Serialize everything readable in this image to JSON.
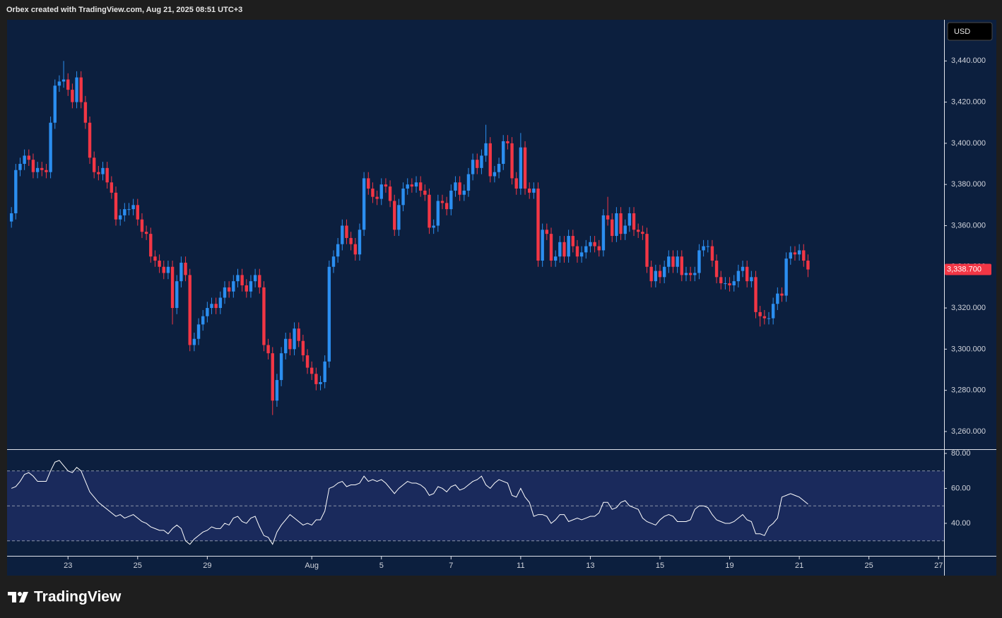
{
  "header": {
    "text": "Orbex created with TradingView.com, Aug 21, 2025 08:51 UTC+3"
  },
  "footer": {
    "logo": "TradingView"
  },
  "chart_data": [
    {
      "type": "candlestick",
      "currency": "USD",
      "up_color": "#2b8ef0",
      "down_color": "#f23645",
      "xlim": [
        -1,
        214.26
      ],
      "xticks": [
        {
          "value": 13,
          "label": "23"
        },
        {
          "value": 29,
          "label": "25"
        },
        {
          "value": 45,
          "label": "29"
        },
        {
          "value": 69,
          "label": "Aug"
        },
        {
          "value": 85,
          "label": "5"
        },
        {
          "value": 101,
          "label": "7"
        },
        {
          "value": 117,
          "label": "11"
        },
        {
          "value": 133,
          "label": "13"
        },
        {
          "value": 149,
          "label": "15"
        },
        {
          "value": 165,
          "label": "19"
        },
        {
          "value": 181,
          "label": "21"
        },
        {
          "value": 197,
          "label": "25"
        },
        {
          "value": 213,
          "label": "27"
        }
      ],
      "ylim": [
        3251.4,
        3460
      ],
      "yticks": [
        {
          "value": 3260,
          "label": "3,260.000"
        },
        {
          "value": 3280,
          "label": "3,280.000"
        },
        {
          "value": 3300,
          "label": "3,300.000"
        },
        {
          "value": 3320,
          "label": "3,320.000"
        },
        {
          "value": 3340,
          "label": "3,340.000"
        },
        {
          "value": 3360,
          "label": "3,360.000"
        },
        {
          "value": 3380,
          "label": "3,380.000"
        },
        {
          "value": 3400,
          "label": "3,400.000"
        },
        {
          "value": 3420,
          "label": "3,420.000"
        },
        {
          "value": 3440,
          "label": "3,440.000"
        }
      ],
      "last_price_label": {
        "value": 3338.7,
        "label": "3,338.700"
      },
      "open": [
        3362,
        3366,
        3387,
        3390,
        3394,
        3392,
        3386,
        3388,
        3387,
        3386,
        3410,
        3428,
        3430,
        3431,
        3426,
        3420,
        3432,
        3420,
        3410,
        3393,
        3386,
        3385,
        3388,
        3381,
        3376,
        3363,
        3365,
        3368,
        3368,
        3370,
        3363,
        3357,
        3356,
        3345,
        3343,
        3340,
        3337,
        3340,
        3320,
        3333,
        3342,
        3336,
        3302,
        3305,
        3312,
        3316,
        3320,
        3322,
        3320,
        3325,
        3330,
        3328,
        3333,
        3336,
        3331,
        3328,
        3333,
        3336,
        3330,
        3302,
        3298,
        3275,
        3285,
        3298,
        3305,
        3300,
        3310,
        3304,
        3297,
        3291,
        3288,
        3283,
        3284,
        3294,
        3340,
        3345,
        3351,
        3360,
        3354,
        3351,
        3346,
        3358,
        3383,
        3378,
        3374,
        3373,
        3380,
        3379,
        3372,
        3358,
        3370,
        3378,
        3380,
        3379,
        3381,
        3377,
        3375,
        3359,
        3360,
        3372,
        3371,
        3368,
        3377,
        3381,
        3375,
        3377,
        3385,
        3392,
        3388,
        3394,
        3400,
        3384,
        3386,
        3390,
        3401,
        3400,
        3383,
        3378,
        3398,
        3378,
        3376,
        3378,
        3343,
        3358,
        3356,
        3343,
        3345,
        3352,
        3345,
        3355,
        3350,
        3345,
        3347,
        3350,
        3352,
        3350,
        3348,
        3365,
        3363,
        3355,
        3366,
        3356,
        3360,
        3366,
        3358,
        3357,
        3356,
        3340,
        3333,
        3338,
        3335,
        3340,
        3345,
        3340,
        3345,
        3336,
        3337,
        3336,
        3337,
        3348,
        3350,
        3350,
        3343,
        3335,
        3332,
        3332,
        3331,
        3333,
        3338,
        3340,
        3333,
        3335,
        3318,
        3316,
        3315,
        3315,
        3322,
        3327,
        3326,
        3344,
        3347,
        3346,
        3348,
        3343
      ],
      "high": [
        3369,
        3390,
        3393,
        3397,
        3397,
        3395,
        3391,
        3391,
        3390,
        3413,
        3431,
        3433,
        3440,
        3434,
        3429,
        3435,
        3435,
        3423,
        3413,
        3396,
        3389,
        3391,
        3391,
        3384,
        3379,
        3368,
        3371,
        3371,
        3373,
        3373,
        3366,
        3360,
        3359,
        3348,
        3346,
        3343,
        3343,
        3343,
        3336,
        3345,
        3345,
        3339,
        3308,
        3315,
        3319,
        3323,
        3325,
        3325,
        3328,
        3333,
        3333,
        3336,
        3339,
        3339,
        3334,
        3336,
        3339,
        3339,
        3333,
        3305,
        3301,
        3288,
        3301,
        3308,
        3308,
        3313,
        3313,
        3307,
        3300,
        3294,
        3291,
        3287,
        3297,
        3343,
        3348,
        3354,
        3363,
        3363,
        3357,
        3354,
        3361,
        3386,
        3386,
        3381,
        3377,
        3383,
        3383,
        3382,
        3375,
        3373,
        3381,
        3383,
        3383,
        3384,
        3384,
        3380,
        3378,
        3363,
        3375,
        3375,
        3374,
        3380,
        3384,
        3384,
        3380,
        3388,
        3395,
        3395,
        3397,
        3409,
        3403,
        3389,
        3393,
        3404,
        3404,
        3403,
        3386,
        3405,
        3401,
        3381,
        3381,
        3381,
        3361,
        3361,
        3359,
        3348,
        3355,
        3355,
        3358,
        3358,
        3353,
        3350,
        3353,
        3355,
        3355,
        3353,
        3368,
        3374,
        3366,
        3369,
        3369,
        3363,
        3369,
        3369,
        3361,
        3360,
        3359,
        3343,
        3341,
        3341,
        3343,
        3348,
        3348,
        3348,
        3348,
        3340,
        3340,
        3340,
        3351,
        3353,
        3353,
        3353,
        3346,
        3338,
        3335,
        3335,
        3336,
        3341,
        3343,
        3343,
        3338,
        3338,
        3321,
        3319,
        3318,
        3325,
        3330,
        3330,
        3347,
        3350,
        3350,
        3351,
        3351,
        3346
      ],
      "low": [
        3359,
        3363,
        3384,
        3387,
        3389,
        3383,
        3383,
        3384,
        3383,
        3383,
        3407,
        3425,
        3427,
        3423,
        3417,
        3417,
        3417,
        3407,
        3390,
        3383,
        3382,
        3382,
        3378,
        3373,
        3360,
        3360,
        3362,
        3365,
        3365,
        3360,
        3354,
        3353,
        3342,
        3340,
        3337,
        3334,
        3334,
        3312,
        3317,
        3330,
        3333,
        3299,
        3299,
        3302,
        3309,
        3313,
        3317,
        3317,
        3317,
        3322,
        3325,
        3325,
        3330,
        3328,
        3325,
        3325,
        3330,
        3327,
        3299,
        3295,
        3268,
        3272,
        3282,
        3295,
        3297,
        3297,
        3301,
        3294,
        3288,
        3285,
        3280,
        3280,
        3281,
        3291,
        3337,
        3342,
        3348,
        3351,
        3348,
        3343,
        3343,
        3355,
        3375,
        3371,
        3370,
        3370,
        3376,
        3369,
        3355,
        3355,
        3367,
        3375,
        3376,
        3376,
        3374,
        3372,
        3356,
        3356,
        3357,
        3368,
        3365,
        3365,
        3374,
        3372,
        3372,
        3374,
        3382,
        3385,
        3385,
        3391,
        3381,
        3381,
        3383,
        3387,
        3397,
        3380,
        3375,
        3375,
        3375,
        3373,
        3373,
        3340,
        3340,
        3353,
        3340,
        3340,
        3342,
        3342,
        3342,
        3347,
        3342,
        3342,
        3344,
        3347,
        3347,
        3345,
        3345,
        3360,
        3352,
        3352,
        3353,
        3353,
        3357,
        3355,
        3354,
        3353,
        3337,
        3330,
        3330,
        3332,
        3332,
        3337,
        3337,
        3337,
        3333,
        3333,
        3333,
        3333,
        3334,
        3345,
        3347,
        3340,
        3332,
        3329,
        3329,
        3328,
        3328,
        3330,
        3335,
        3330,
        3330,
        3315,
        3311,
        3312,
        3312,
        3312,
        3319,
        3323,
        3323,
        3341,
        3343,
        3343,
        3340,
        3335
      ],
      "close": [
        3366,
        3387,
        3390,
        3394,
        3392,
        3386,
        3388,
        3387,
        3386,
        3410,
        3428,
        3430,
        3431,
        3426,
        3420,
        3432,
        3420,
        3410,
        3393,
        3386,
        3385,
        3388,
        3381,
        3376,
        3363,
        3365,
        3368,
        3368,
        3370,
        3363,
        3357,
        3356,
        3345,
        3343,
        3340,
        3337,
        3340,
        3320,
        3333,
        3342,
        3336,
        3302,
        3305,
        3312,
        3316,
        3320,
        3322,
        3320,
        3325,
        3330,
        3328,
        3333,
        3336,
        3331,
        3328,
        3333,
        3336,
        3330,
        3302,
        3298,
        3275,
        3285,
        3298,
        3305,
        3300,
        3310,
        3304,
        3297,
        3291,
        3288,
        3283,
        3284,
        3294,
        3340,
        3345,
        3351,
        3360,
        3354,
        3351,
        3346,
        3358,
        3383,
        3378,
        3374,
        3373,
        3380,
        3379,
        3372,
        3358,
        3370,
        3378,
        3380,
        3379,
        3381,
        3377,
        3375,
        3359,
        3360,
        3372,
        3371,
        3368,
        3377,
        3381,
        3375,
        3377,
        3385,
        3392,
        3388,
        3394,
        3400,
        3384,
        3386,
        3390,
        3401,
        3400,
        3383,
        3378,
        3398,
        3378,
        3376,
        3378,
        3343,
        3358,
        3356,
        3343,
        3345,
        3352,
        3345,
        3355,
        3350,
        3345,
        3347,
        3350,
        3352,
        3350,
        3348,
        3365,
        3363,
        3355,
        3366,
        3356,
        3360,
        3366,
        3358,
        3357,
        3356,
        3340,
        3333,
        3338,
        3335,
        3340,
        3345,
        3340,
        3345,
        3336,
        3337,
        3336,
        3337,
        3348,
        3350,
        3350,
        3343,
        3335,
        3332,
        3332,
        3331,
        3333,
        3338,
        3340,
        3333,
        3335,
        3318,
        3316,
        3315,
        3315,
        3322,
        3327,
        3326,
        3344,
        3347,
        3346,
        3348,
        3343,
        3338.7
      ]
    },
    {
      "type": "line",
      "color": "#ffffff",
      "band_color": "#1a2a5c",
      "xlim": [
        -1,
        214.26
      ],
      "ylim": [
        21.4,
        82
      ],
      "yticks": [
        {
          "value": 80,
          "label": "80.00"
        },
        {
          "value": 60,
          "label": "60.00"
        },
        {
          "value": 40,
          "label": "40.00"
        }
      ],
      "levels": [
        30,
        50,
        70
      ],
      "values": [
        60,
        61,
        64,
        68,
        69,
        67,
        64,
        64,
        64,
        70,
        75,
        76,
        73,
        70,
        69,
        72,
        70,
        64,
        58,
        55,
        52,
        50,
        48,
        46,
        44,
        45,
        43,
        44,
        45,
        43,
        41,
        40,
        38,
        37,
        36,
        36,
        34,
        37,
        39,
        37,
        30,
        28,
        31,
        33,
        35,
        36,
        38,
        37,
        37,
        40,
        39,
        43,
        44,
        41,
        40,
        43,
        44,
        38,
        33,
        32,
        28,
        35,
        39,
        42,
        45,
        43,
        41,
        39,
        40,
        39,
        42,
        42,
        47,
        60,
        61,
        63,
        64,
        61,
        62,
        62,
        63,
        67,
        64,
        65,
        64,
        65,
        63,
        60,
        57,
        60,
        62,
        64,
        63,
        63,
        62,
        60,
        56,
        57,
        61,
        60,
        58,
        61,
        62,
        59,
        60,
        62,
        64,
        65,
        67,
        62,
        60,
        63,
        65,
        64,
        63,
        56,
        55,
        60,
        55,
        52,
        44,
        45,
        45,
        44,
        40,
        42,
        45,
        45,
        41,
        42,
        43,
        42,
        43,
        44,
        44,
        46,
        52,
        52,
        48,
        49,
        52,
        53,
        50,
        49,
        48,
        43,
        41,
        40,
        39,
        42,
        44,
        45,
        44,
        41,
        41,
        41,
        42,
        48,
        50,
        50,
        49,
        45,
        42,
        41,
        40,
        40,
        41,
        43,
        45,
        42,
        41,
        34,
        34,
        33,
        38,
        40,
        43,
        55,
        56,
        57,
        56,
        55,
        53,
        51
      ]
    }
  ]
}
